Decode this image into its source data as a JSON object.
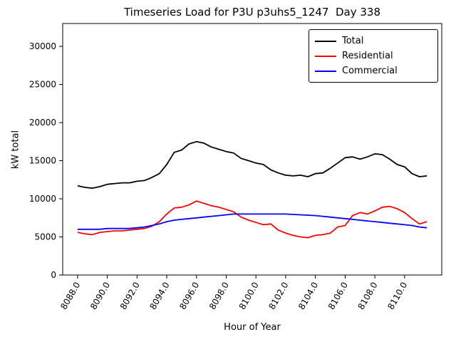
{
  "chart_data": {
    "type": "line",
    "title": "Timeseries Load for P3U p3uhs5_1247  Day 338",
    "xlabel": "Hour of Year",
    "ylabel": "kW total",
    "xlim": [
      8087.0,
      8112.5
    ],
    "ylim": [
      0,
      33000
    ],
    "xticks": [
      8088,
      8090,
      8092,
      8094,
      8096,
      8098,
      8100,
      8102,
      8104,
      8106,
      8108,
      8110
    ],
    "yticks": [
      0,
      5000,
      10000,
      15000,
      20000,
      25000,
      30000
    ],
    "grid": false,
    "legend": {
      "position": "upper right",
      "entries": [
        {
          "label": "Total",
          "color": "#000000"
        },
        {
          "label": "Residential",
          "color": "#ff0000"
        },
        {
          "label": "Commercial",
          "color": "#0000ff"
        }
      ]
    },
    "x": [
      8088.0,
      8088.5,
      8089.0,
      8089.5,
      8090.0,
      8090.5,
      8091.0,
      8091.5,
      8092.0,
      8092.5,
      8093.0,
      8093.5,
      8094.0,
      8094.5,
      8095.0,
      8095.5,
      8096.0,
      8096.5,
      8097.0,
      8097.5,
      8098.0,
      8098.5,
      8099.0,
      8099.5,
      8100.0,
      8100.5,
      8101.0,
      8101.5,
      8102.0,
      8102.5,
      8103.0,
      8103.5,
      8104.0,
      8104.5,
      8105.0,
      8105.5,
      8106.0,
      8106.5,
      8107.0,
      8107.5,
      8108.0,
      8108.5,
      8109.0,
      8109.5,
      8110.0,
      8110.5,
      8111.0,
      8111.5
    ],
    "series": [
      {
        "name": "Total",
        "color": "#000000",
        "values": [
          11700,
          11500,
          11400,
          11600,
          11900,
          12000,
          12100,
          12100,
          12300,
          12400,
          12800,
          13300,
          14500,
          16100,
          16400,
          17200,
          17500,
          17300,
          16800,
          16500,
          16200,
          16000,
          15300,
          15000,
          14700,
          14500,
          13800,
          13400,
          13100,
          13000,
          13100,
          12900,
          13300,
          13400,
          14000,
          14700,
          15400,
          15500,
          15200,
          15500,
          15900,
          15800,
          15200,
          14500,
          14200,
          13300,
          12900,
          13000
        ]
      },
      {
        "name": "Residential",
        "color": "#ff0000",
        "values": [
          5600,
          5400,
          5300,
          5600,
          5700,
          5800,
          5800,
          5900,
          6000,
          6100,
          6400,
          7000,
          8000,
          8800,
          8900,
          9200,
          9700,
          9400,
          9100,
          8900,
          8600,
          8300,
          7600,
          7200,
          6900,
          6600,
          6700,
          5900,
          5500,
          5200,
          5000,
          4900,
          5200,
          5300,
          5500,
          6300,
          6500,
          7800,
          8200,
          8000,
          8400,
          8900,
          9000,
          8700,
          8200,
          7400,
          6700,
          7000
        ]
      },
      {
        "name": "Commercial",
        "color": "#0000ff",
        "values": [
          6000,
          6000,
          6000,
          6000,
          6100,
          6100,
          6100,
          6100,
          6200,
          6300,
          6500,
          6700,
          7000,
          7200,
          7300,
          7400,
          7500,
          7600,
          7700,
          7800,
          7900,
          8000,
          8000,
          8000,
          8000,
          8000,
          8000,
          8000,
          8000,
          7950,
          7900,
          7850,
          7800,
          7700,
          7600,
          7500,
          7400,
          7300,
          7200,
          7100,
          7000,
          6900,
          6800,
          6700,
          6600,
          6500,
          6300,
          6200
        ]
      }
    ]
  }
}
